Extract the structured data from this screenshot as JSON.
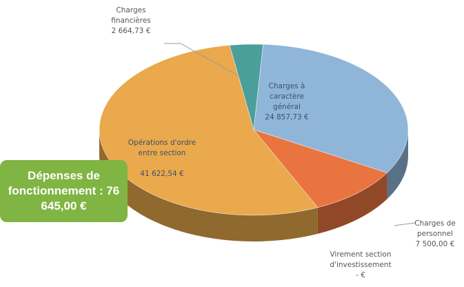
{
  "chart_data": {
    "type": "pie",
    "categories": [
      "Charges financières",
      "Charges à caractère général",
      "Charges de personnel",
      "Virement section d'investissement",
      "Opérations d'ordre entre section"
    ],
    "values": [
      2664.73,
      24857.73,
      7500.0,
      0,
      41622.54
    ],
    "value_labels": [
      "2 664,73 €",
      "24 857,73 €",
      "7 500,00 €",
      "- €",
      "41 622,54 €"
    ],
    "colors": [
      "#4b9f9b",
      "#8fb6d9",
      "#ea7440",
      "#888888",
      "#e9a94c"
    ],
    "annotation": "Dépenses de fonctionnement : 76 645,00 €"
  }
}
